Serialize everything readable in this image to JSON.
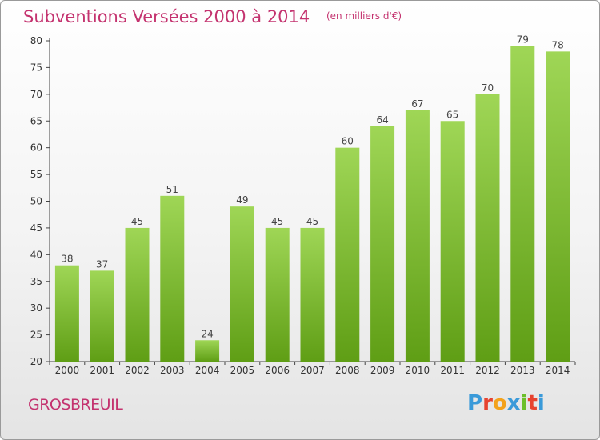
{
  "title": {
    "main": "Subventions Versées 2000 à 2014",
    "unit": "(en milliers d'€)"
  },
  "place": "GROSBREUIL",
  "logo": {
    "text": "Proxiti",
    "letter_colors": [
      "#3a9ad9",
      "#e7432f",
      "#f3a21b",
      "#3a9ad9",
      "#6cbf2a",
      "#e7432f",
      "#3a9ad9"
    ]
  },
  "colors": {
    "title": "#c4336f",
    "bar_light": "#9fd656",
    "bar_dark": "#5f9e15",
    "axis": "#444444",
    "grid_tick": "#444444"
  },
  "chart_data": {
    "type": "bar",
    "title": "Subventions Versées 2000 à 2014",
    "subtitle": "(en milliers d'€)",
    "categories": [
      "2000",
      "2001",
      "2002",
      "2003",
      "2004",
      "2005",
      "2006",
      "2007",
      "2008",
      "2009",
      "2010",
      "2011",
      "2012",
      "2013",
      "2014"
    ],
    "values": [
      38,
      37,
      45,
      51,
      24,
      49,
      45,
      45,
      60,
      64,
      67,
      65,
      70,
      79,
      78
    ],
    "ylim": [
      20,
      80
    ],
    "yticks": [
      20,
      25,
      30,
      35,
      40,
      45,
      50,
      55,
      60,
      65,
      70,
      75,
      80
    ],
    "data_labels": true,
    "grid": false,
    "xlabel": "",
    "ylabel": ""
  }
}
